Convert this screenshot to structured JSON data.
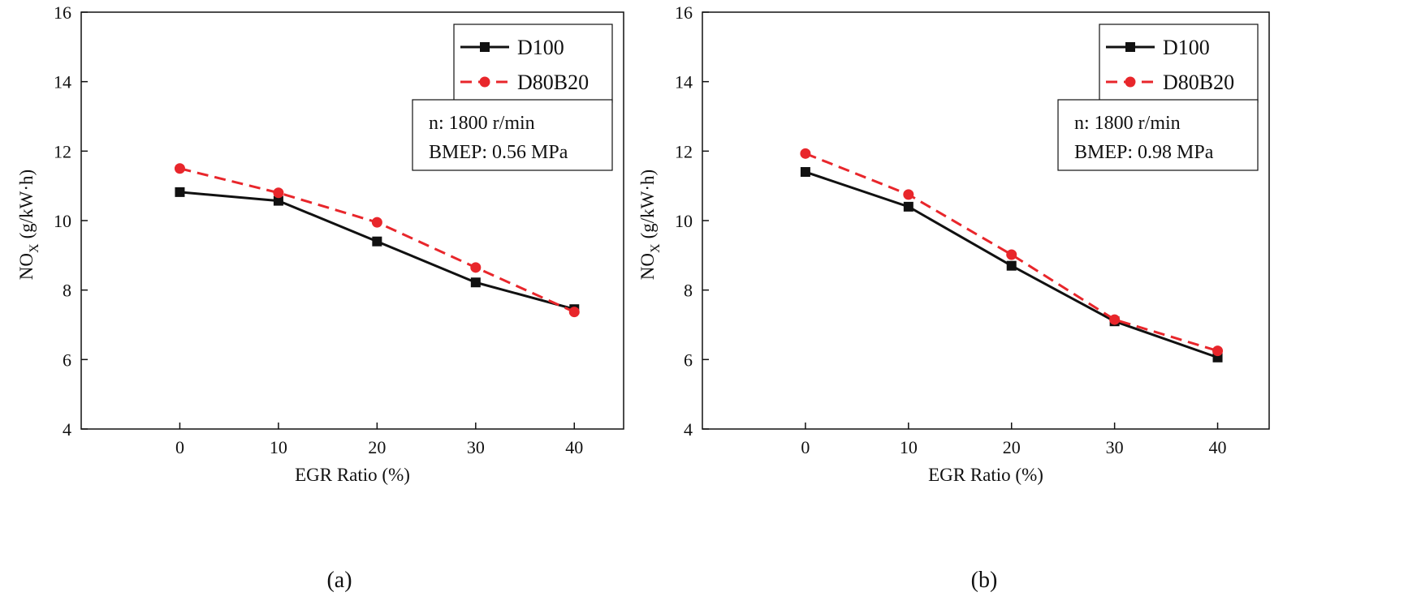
{
  "chart_data": [
    {
      "type": "line",
      "panel_label": "(a)",
      "xlabel": "EGR Ratio (%)",
      "ylabel_main": "NO",
      "ylabel_sub": "X",
      "ylabel_unit": "(g/kW·h)",
      "x": [
        0,
        10,
        20,
        30,
        40
      ],
      "xlim": [
        -10,
        45
      ],
      "ylim": [
        4,
        16
      ],
      "xticks": [
        0,
        10,
        20,
        30,
        40
      ],
      "yticks": [
        4,
        6,
        8,
        10,
        12,
        14,
        16
      ],
      "series": [
        {
          "name": "D100",
          "values": [
            10.82,
            10.57,
            9.4,
            8.22,
            7.45
          ],
          "color": "#111111",
          "marker": "square",
          "dash": "solid"
        },
        {
          "name": "D80B20",
          "values": [
            11.5,
            10.8,
            9.95,
            8.65,
            7.37
          ],
          "color": "#e8262b",
          "marker": "circle",
          "dash": "dashed"
        }
      ],
      "legend_position": "top-right",
      "annotation": [
        "n: 1800 r/min",
        "BMEP: 0.56 MPa"
      ]
    },
    {
      "type": "line",
      "panel_label": "(b)",
      "xlabel": "EGR Ratio (%)",
      "ylabel_main": "NO",
      "ylabel_sub": "X",
      "ylabel_unit": "(g/kW·h)",
      "x": [
        0,
        10,
        20,
        30,
        40
      ],
      "xlim": [
        -10,
        45
      ],
      "ylim": [
        4,
        16
      ],
      "xticks": [
        0,
        10,
        20,
        30,
        40
      ],
      "yticks": [
        4,
        6,
        8,
        10,
        12,
        14,
        16
      ],
      "series": [
        {
          "name": "D100",
          "values": [
            11.4,
            10.4,
            8.7,
            7.1,
            6.06
          ],
          "color": "#111111",
          "marker": "square",
          "dash": "solid"
        },
        {
          "name": "D80B20",
          "values": [
            11.93,
            10.75,
            9.02,
            7.15,
            6.25
          ],
          "color": "#e8262b",
          "marker": "circle",
          "dash": "dashed"
        }
      ],
      "legend_position": "top-right",
      "annotation": [
        "n: 1800 r/min",
        "BMEP: 0.98 MPa"
      ]
    }
  ]
}
